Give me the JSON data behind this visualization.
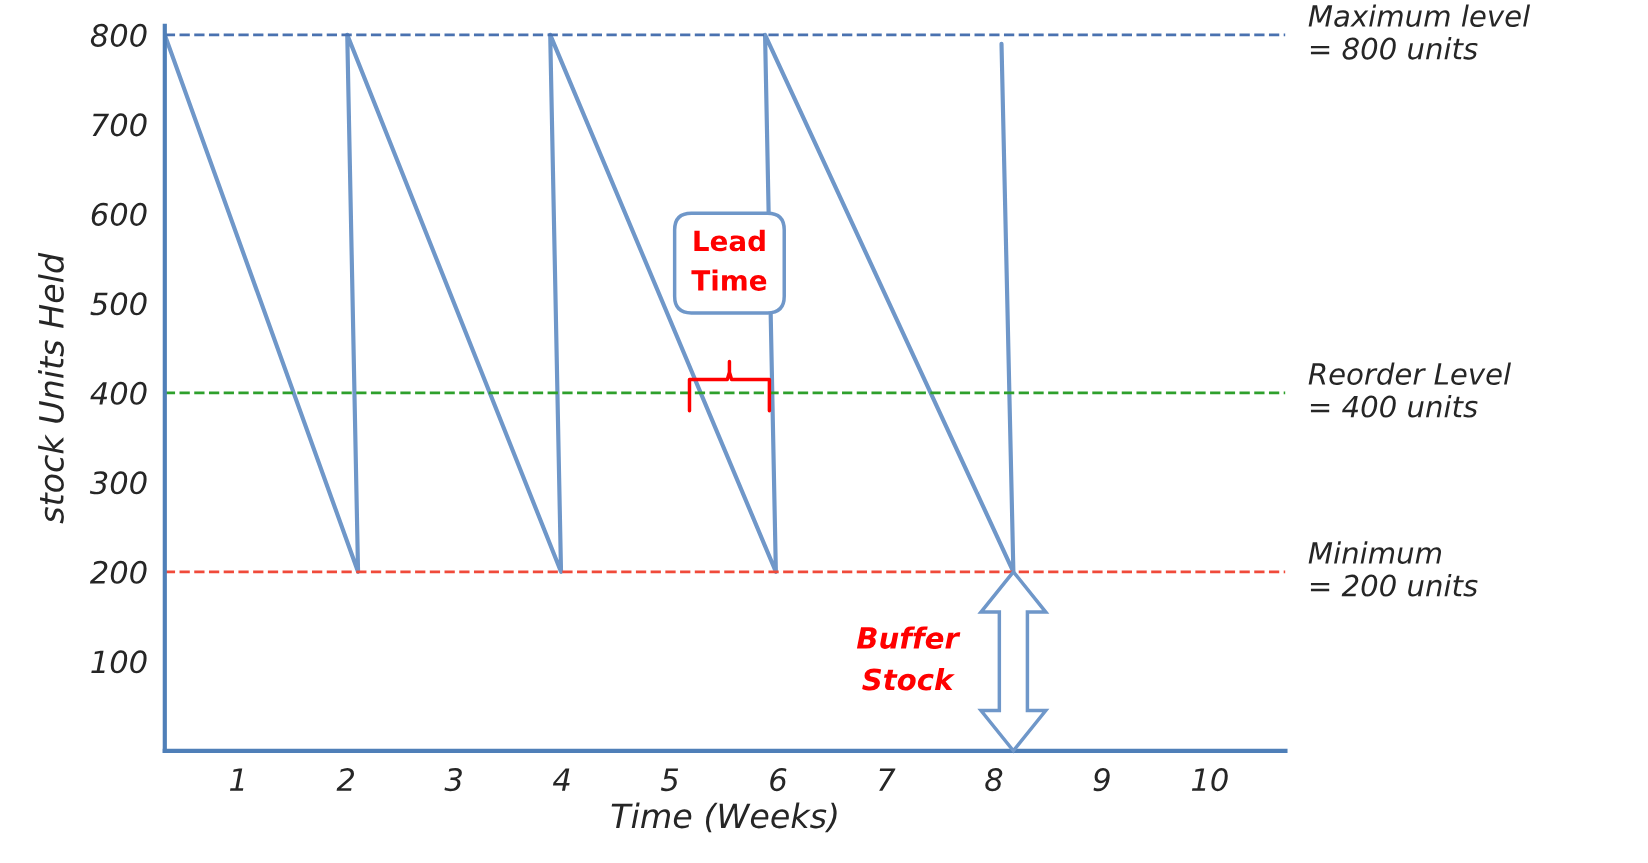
{
  "chart_data": {
    "type": "line",
    "xlabel": "Time (Weeks)",
    "ylabel": "stock Units Held",
    "series": [
      {
        "color": "#6f97c9",
        "x": [
          0.32,
          2.11,
          2.01,
          3.99,
          3.89,
          5.98,
          5.88,
          8.18,
          8.07
        ],
        "values": [
          800,
          200,
          800,
          200,
          800,
          200,
          800,
          200,
          790
        ]
      }
    ],
    "xlim": [
      0.32,
      10.7
    ],
    "ylim": [
      0,
      810
    ],
    "xticks": [
      1,
      2,
      3,
      4,
      5,
      6,
      7,
      8,
      9,
      10
    ],
    "yticks": [
      100,
      200,
      300,
      400,
      500,
      600,
      700,
      800
    ],
    "grid": false,
    "legend": false,
    "marker": "none",
    "line_style": "solid",
    "ref_lines": [
      {
        "axis": "y",
        "value": 800,
        "label": "Maximum level\n= 800 units",
        "color": "#4a72b0",
        "line_style": "dashed"
      },
      {
        "axis": "y",
        "value": 400,
        "label": "Reorder Level\n= 400 units",
        "color": "#2ea02c",
        "line_style": "dashed"
      },
      {
        "axis": "y",
        "value": 200,
        "label": "Minimum\n= 200 units",
        "color": "#f04a3a",
        "line_style": "dashed"
      }
    ],
    "annotations": [
      "Lead Time",
      "Buffer Stock"
    ]
  }
}
